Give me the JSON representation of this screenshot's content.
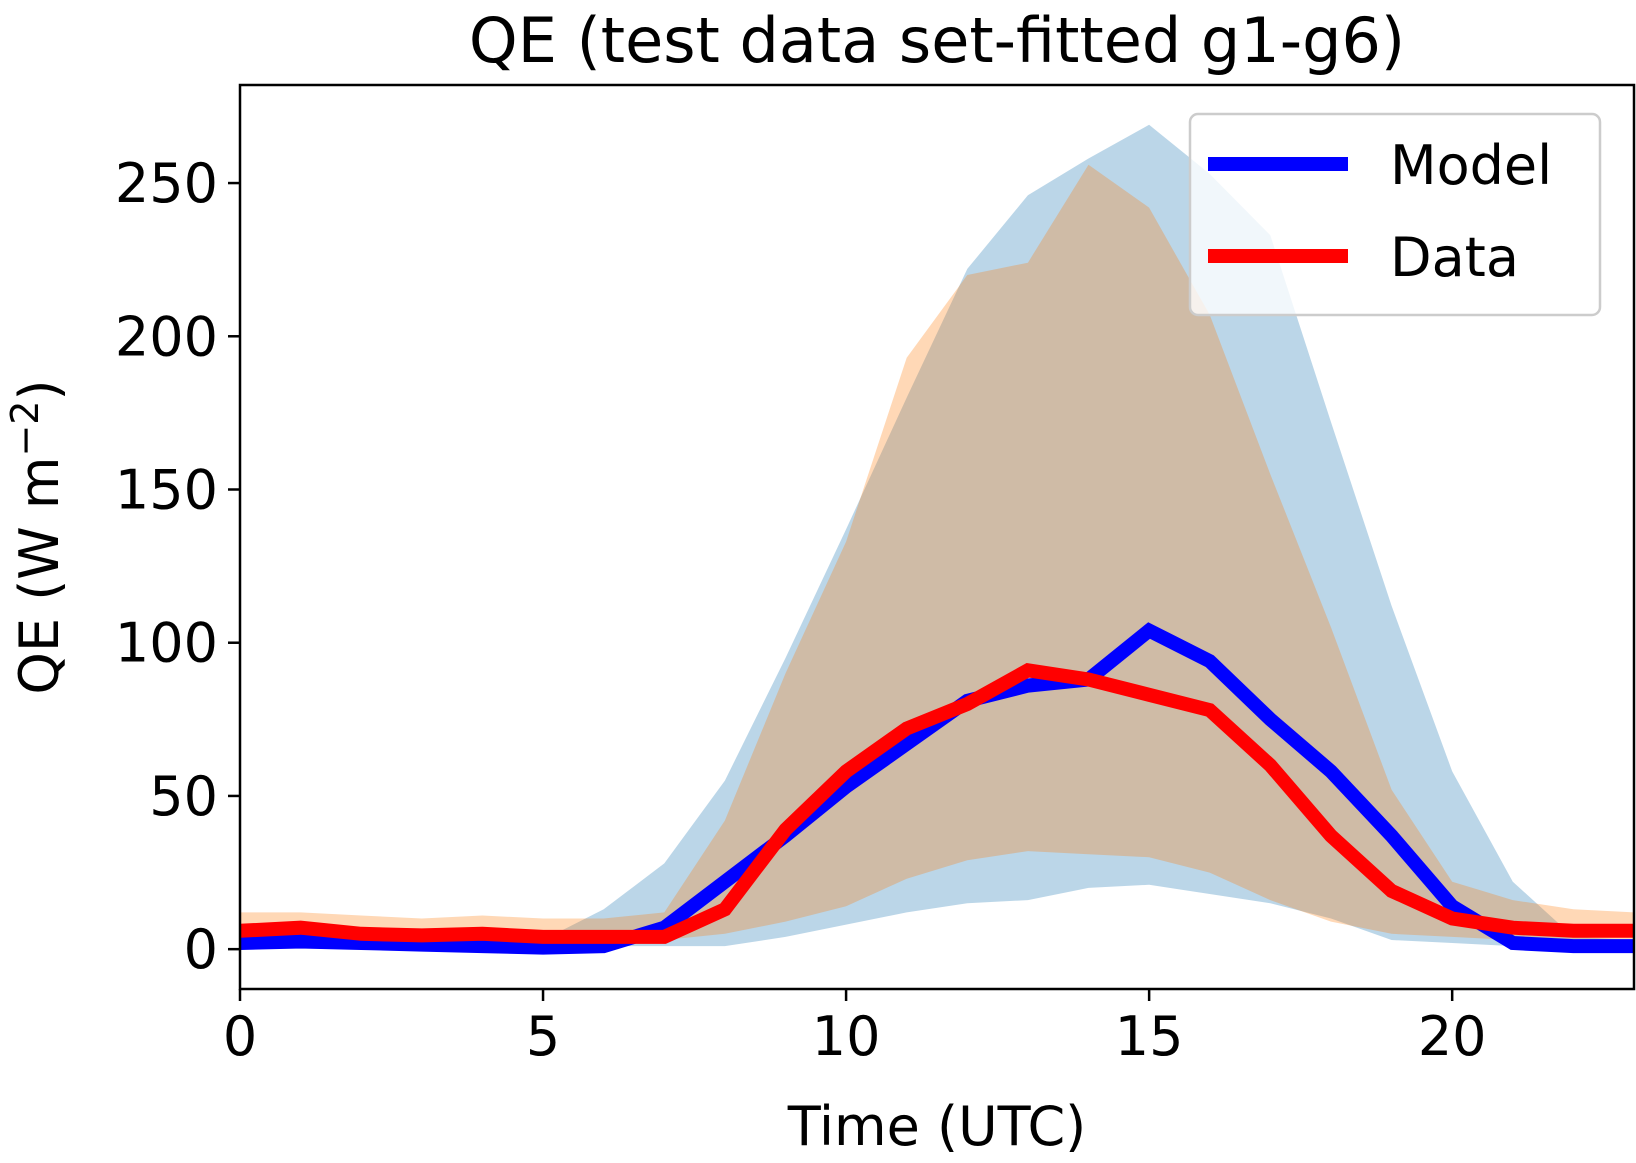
{
  "chart_data": {
    "type": "line",
    "title": "QE (test data set-fitted g1-g6)",
    "xlabel": "Time (UTC)",
    "ylabel_main": "QE (W m",
    "ylabel_sup": "−2",
    "ylabel_end": ")",
    "xlim": [
      0,
      23
    ],
    "ylim": [
      -13,
      282
    ],
    "xticks": [
      0,
      5,
      10,
      15,
      20
    ],
    "yticks": [
      0,
      50,
      100,
      150,
      200,
      250
    ],
    "grid": false,
    "legend_position": "top-right",
    "x": [
      0,
      1,
      2,
      3,
      4,
      5,
      6,
      7,
      8,
      9,
      10,
      11,
      12,
      13,
      14,
      15,
      16,
      17,
      18,
      19,
      20,
      21,
      22,
      23
    ],
    "series": [
      {
        "name": "Model",
        "color": "#0000ff",
        "values": [
          2,
          2.5,
          2,
          1.5,
          1,
          0.5,
          1,
          7,
          22,
          37,
          53,
          67,
          81,
          86,
          88,
          104,
          94,
          75,
          58,
          37,
          14,
          2,
          1,
          1
        ]
      },
      {
        "name": "Data",
        "color": "#ff0000",
        "values": [
          6,
          7,
          5,
          4.5,
          5,
          4,
          4,
          4,
          13,
          39,
          58,
          72,
          80,
          91,
          88,
          83,
          78,
          60,
          37,
          19,
          10,
          7,
          6,
          6
        ]
      }
    ],
    "bands": [
      {
        "color": "#1f77b4",
        "opacity": 0.3,
        "upper": [
          3,
          3,
          3,
          3,
          3,
          3,
          13,
          28,
          55,
          95,
          137,
          180,
          222,
          246,
          258,
          269,
          253,
          233,
          172,
          112,
          58,
          22,
          4,
          3
        ],
        "lower": [
          1,
          1,
          1,
          1,
          1,
          1,
          1,
          1,
          1,
          4,
          8,
          12,
          15,
          16,
          20,
          21,
          18,
          15,
          10,
          3,
          2,
          1,
          1,
          1
        ]
      },
      {
        "color": "#ff7f0e",
        "opacity": 0.3,
        "upper": [
          12,
          12,
          11,
          10,
          11,
          10,
          10,
          12,
          42,
          90,
          133,
          193,
          220,
          224,
          256,
          242,
          207,
          155,
          105,
          52,
          22,
          16,
          13,
          12
        ],
        "lower": [
          2,
          2,
          2,
          2,
          2,
          2,
          2,
          3,
          5,
          9,
          14,
          23,
          29,
          32,
          31,
          30,
          25,
          16,
          9,
          5,
          4,
          3,
          2,
          2
        ]
      }
    ]
  }
}
